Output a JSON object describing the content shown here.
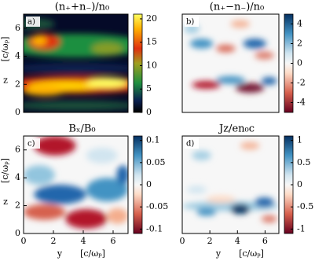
{
  "chart_data": [
    {
      "type": "heatmap",
      "title": "(n₊+n₋)/n₀",
      "panel_label": "a)",
      "ylabel": "z",
      "ylabel_unit": "[c/ωₚ]",
      "ylim": [
        0,
        7
      ],
      "yticks": [
        0,
        2,
        4,
        6
      ],
      "xlim": [
        0,
        7
      ],
      "colormap": "heat",
      "clim": [
        0,
        21
      ],
      "cticks": [
        0,
        5,
        10,
        15,
        20
      ]
    },
    {
      "type": "heatmap",
      "title": "(n₊−n₋)/n₀",
      "panel_label": "b)",
      "ylim": [
        0,
        7
      ],
      "xlim": [
        0,
        7
      ],
      "colormap": "RdBu",
      "clim": [
        -5,
        5
      ],
      "cticks": [
        -4,
        -2,
        0,
        2,
        4
      ]
    },
    {
      "type": "heatmap",
      "title": "Bₓ/B₀",
      "panel_label": "c)",
      "ylabel": "z",
      "ylabel_unit": "[c/ωₚ]",
      "xlabel": "y",
      "xlabel_unit": "[c/ωₚ]",
      "ylim": [
        0,
        7
      ],
      "yticks": [
        0,
        2,
        4,
        6
      ],
      "xlim": [
        0,
        7
      ],
      "xticks": [
        0,
        2,
        4,
        6
      ],
      "colormap": "RdBu",
      "clim": [
        -0.11,
        0.11
      ],
      "cticks": [
        -0.1,
        -0.05,
        0,
        0.05,
        0.1
      ]
    },
    {
      "type": "heatmap",
      "title": "Jz/en₀c",
      "panel_label": "d)",
      "xlabel": "y",
      "xlabel_unit": "[c/ωₚ]",
      "ylim": [
        0,
        7
      ],
      "xlim": [
        0,
        7
      ],
      "xticks": [
        0,
        2,
        4,
        6
      ],
      "colormap": "RdBu",
      "clim": [
        -1.1,
        1.1
      ],
      "cticks": [
        -1,
        -0.5,
        0,
        0.5,
        1
      ]
    }
  ]
}
